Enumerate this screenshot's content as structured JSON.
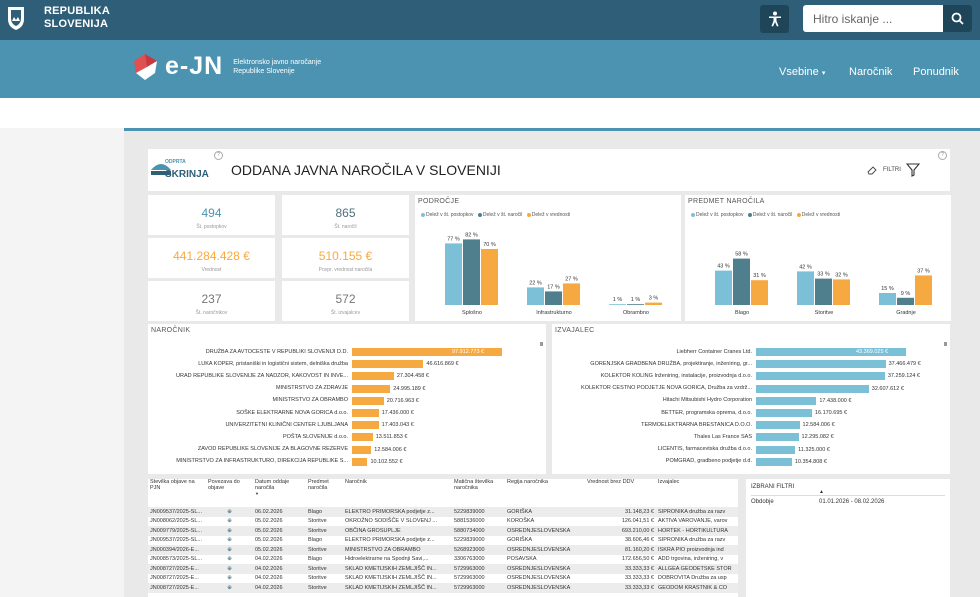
{
  "site": {
    "name_line1": "REPUBLIKA",
    "name_line2": "SLOVENIJA"
  },
  "search": {
    "placeholder": "Hitro iskanje ..."
  },
  "nav": {
    "logo_text": "e-JN",
    "subtitle_line1": "Elektronsko javno naročanje",
    "subtitle_line2": "Republike Slovenije",
    "items": [
      "Vsebine",
      "Naročnik",
      "Ponudnik"
    ]
  },
  "colors": {
    "light": "#7cc0d8",
    "dark": "#4f7e8c",
    "orange": "#f7a941",
    "topbar": "#2f5f78",
    "nav": "#4b93b1"
  },
  "report": {
    "logo_line1": "ODPRTA",
    "logo_line2": "SKRINJA",
    "title": "ODDANA JAVNA NAROČILA V SLOVENIJI",
    "filters_label": "FILTRI",
    "help": "?"
  },
  "kpis": [
    {
      "value": "494",
      "label": "Št. postopkov",
      "color": "#4b93b1"
    },
    {
      "value": "865",
      "label": "Št. naročil",
      "color": "#4f6f7e"
    },
    {
      "value": "441.284.428 €",
      "label": "Vrednost",
      "color": "#f7a941"
    },
    {
      "value": "510.155 €",
      "label": "Povpr. vrednost naročila",
      "color": "#f7a941"
    },
    {
      "value": "237",
      "label": "Št. naročnikov",
      "color": "#777777"
    },
    {
      "value": "572",
      "label": "Št. izvajalcev",
      "color": "#777777"
    }
  ],
  "legend_labels": [
    "Delež v št. postopkov",
    "Delež v št. naročil",
    "Delež v vrednosti"
  ],
  "chart_data": [
    {
      "type": "bar",
      "title": "PODROČJE",
      "categories": [
        "Splošno",
        "Infrastrukturno",
        "Obrambno"
      ],
      "series": [
        {
          "name": "Delež v št. postopkov",
          "values": [
            77,
            22,
            1
          ]
        },
        {
          "name": "Delež v št. naročil",
          "values": [
            82,
            17,
            1
          ]
        },
        {
          "name": "Delež v vrednosti",
          "values": [
            70,
            27,
            3
          ]
        }
      ],
      "labels": [
        [
          "77 %",
          "82 %",
          "70 %"
        ],
        [
          "22 %",
          "17 %",
          "27 %"
        ],
        [
          "1 %",
          "1 %",
          "3 %"
        ]
      ]
    },
    {
      "type": "bar",
      "title": "PREDMET NAROČILA",
      "categories": [
        "Blago",
        "Storitve",
        "Gradnje"
      ],
      "series": [
        {
          "name": "Delež v št. postopkov",
          "values": [
            43,
            42,
            15
          ]
        },
        {
          "name": "Delež v št. naročil",
          "values": [
            58,
            33,
            9
          ]
        },
        {
          "name": "Delež v vrednosti",
          "values": [
            31,
            32,
            37
          ]
        }
      ],
      "labels": [
        [
          "43 %",
          "58 %",
          "31 %"
        ],
        [
          "42 %",
          "33 %",
          "32 %"
        ],
        [
          "15 %",
          "9 %",
          "37 %"
        ]
      ]
    },
    {
      "type": "bar",
      "title": "NAROČNIK",
      "orientation": "horizontal",
      "categories": [
        "DRUŽBA ZA AVTOCESTE V REPUBLIKI SLOVENIJI D.D.",
        "LUKA KOPER, pristaniški in logistični sistem, delniška družba",
        "URAD REPUBLIKE SLOVENIJE ZA NADZOR, KAKOVOST IN INVE...",
        "MINISTRSTVO ZA ZDRAVJE",
        "MINISTRSTVO ZA OBRAMBO",
        "SOŠKE ELEKTRARNE NOVA GORICA d.o.o.",
        "UNIVERZITETNI KLINIČNI CENTER LJUBLJANA",
        "POŠTA SLOVENIJE d.o.o.",
        "ZAVOD REPUBLIKE SLOVENIJE ZA BLAGOVNE REZERVE",
        "MINISTRSTVO ZA INFRASTRUKTURO, DIREKCIJA REPUBLIKE S..."
      ],
      "values": [
        97912773,
        46616869,
        27304458,
        24995189,
        20716963,
        17436000,
        17403043,
        13511853,
        12584006,
        10102552
      ],
      "labels": [
        "97.912.773 €",
        "46.616.869 €",
        "27.304.458 €",
        "24.995.189 €",
        "20.716.963 €",
        "17.436.000 €",
        "17.403.043 €",
        "13.511.853 €",
        "12.584.006 €",
        "10.102.552 €"
      ]
    },
    {
      "type": "bar",
      "title": "IZVAJALEC",
      "orientation": "horizontal",
      "categories": [
        "Liebherr Container Cranes Ltd.",
        "GORENJSKA GRADBENA DRUŽBA, projektiranje, inženiring, gr...",
        "KOLEKTOR KOLING Inženiring, instalacije, proizvodnja d.o.o.",
        "KOLEKTOR CESTNO PODJETJE NOVA GORICA, Družba za vzdrž...",
        "Hitachi Mitsubishi Hydro Corporation",
        "BETTER, programska oprema, d.o.o.",
        "TERMOELEKTRARNA BRESTANICA D.O.O.",
        "Thales Las France SAS",
        "LICENTIS, farmacevtska družba d.o.o.",
        "POMGRAD, gradbeno podjetje d.d."
      ],
      "values": [
        43369025,
        37466479,
        37259124,
        32607612,
        17438000,
        16170695,
        12584006,
        12295082,
        11325000,
        10354808
      ],
      "labels": [
        "43.369.025 €",
        "37.466.479 €",
        "37.259.124 €",
        "32.607.612 €",
        "17.438.000 €",
        "16.170.695 €",
        "12.584.006 €",
        "12.295.082 €",
        "11.325.000 €",
        "10.354.808 €"
      ]
    }
  ],
  "table": {
    "headers": [
      "Številka objave na PJN",
      "Povezava do objave",
      "Datum oddaje naročila",
      "Predmet naročila",
      "Naročnik",
      "Matična številka naročnika",
      "Regija naročnika",
      "Vrednost brez DDV",
      "Izvajalec"
    ],
    "rows": [
      [
        "JN009537/2025-SL...",
        "⊕",
        "06.02.2026",
        "Blago",
        "ELEKTRO PRIMORSKA podjetje z...",
        "5229839000",
        "GORIŠKA",
        "31.148,23 €",
        "SIPRONIKA družba za razv"
      ],
      [
        "JN008062/2025-SL...",
        "⊕",
        "05.02.2026",
        "Storitve",
        "OKROŽNO SODIŠČE V SLOVENJ ...",
        "5881536000",
        "KOROŠKA",
        "126.041,51 €",
        "AKTIVA VAROVANJE, varov"
      ],
      [
        "JN009779/2025-SL...",
        "⊕",
        "05.02.2026",
        "Storitve",
        "OBČINA GROSUPLJE",
        "5880734000",
        "OSREDNJESLOVENSKA",
        "693.210,00 €",
        "HORTEK - HORTIKULTURA"
      ],
      [
        "JN009537/2025-SL...",
        "⊕",
        "05.02.2026",
        "Blago",
        "ELEKTRO PRIMORSKA podjetje z...",
        "5229839000",
        "GORIŠKA",
        "38.606,46 €",
        "SIPRONIKA družba za razv"
      ],
      [
        "JN000394/2026-E...",
        "⊕",
        "05.02.2026",
        "Storitve",
        "MINISTRSTVO ZA OBRAMBO",
        "5268923000",
        "OSREDNJESLOVENSKA",
        "81.160,20 €",
        "ISKRA PIO proizvodnja ind"
      ],
      [
        "JN008573/2025-SL...",
        "⊕",
        "04.02.2026",
        "Blago",
        "Hidroelektrarne na Spodnji Savi,...",
        "3306763000",
        "POSAVSKA",
        "172.656,50 €",
        "ADD trgovina, inženiring, v"
      ],
      [
        "JN008727/2025-E...",
        "⊕",
        "04.02.2026",
        "Storitve",
        "SKLAD KMETIJSKIH ZEMLJIŠČ IN...",
        "5729963000",
        "OSREDNJESLOVENSKA",
        "33.333,33 €",
        "ALLGEA GEODETSKE STOR"
      ],
      [
        "JN008727/2025-E...",
        "⊕",
        "04.02.2026",
        "Storitve",
        "SKLAD KMETIJSKIH ZEMLJIŠČ IN...",
        "5729963000",
        "OSREDNJESLOVENSKA",
        "33.333,33 €",
        "DOBROVITA Družba za usp"
      ],
      [
        "JN008727/2025-E...",
        "⊕",
        "04.02.2026",
        "Storitve",
        "SKLAD KMETIJSKIH ZEMLJIŠČ IN...",
        "5729963000",
        "OSREDNJESLOVENSKA",
        "33.333,33 €",
        "GEODOM KRASTNIK & CO"
      ]
    ]
  },
  "filters": {
    "title": "IZBRANI FILTRI",
    "label": "Obdobje",
    "value": "01.01.2026 - 08.02.2026"
  }
}
